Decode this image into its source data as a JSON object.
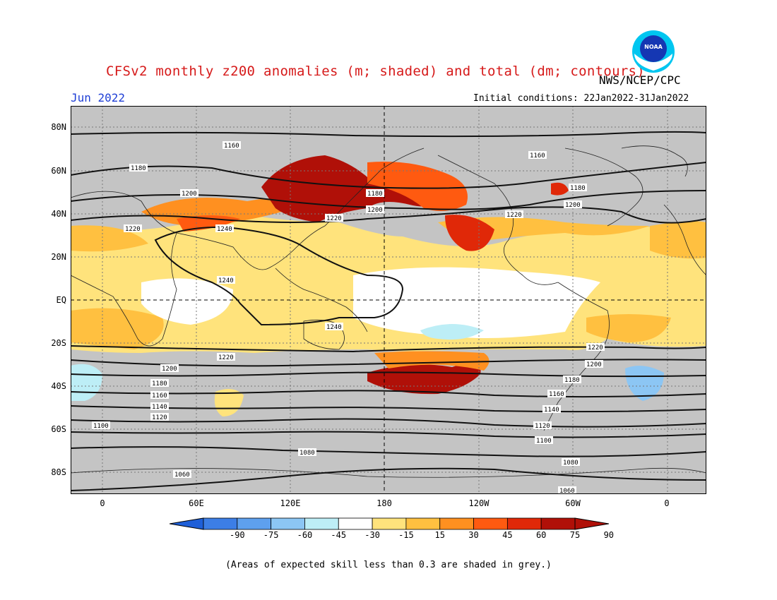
{
  "title": "CFSv2 monthly z200 anomalies (m; shaded) and total (dm; contours)",
  "agency": "NWS/NCEP/CPC",
  "logo_text": "NOAA",
  "month": "Jun 2022",
  "initial_conditions": "Initial conditions: 22Jan2022-31Jan2022",
  "footnote": "(Areas of expected skill less than 0.3 are shaded in grey.)",
  "lat_labels": [
    "80N",
    "60N",
    "40N",
    "20N",
    "EQ",
    "20S",
    "40S",
    "60S",
    "80S"
  ],
  "lon_labels": [
    "0",
    "60E",
    "120E",
    "180",
    "120W",
    "60W",
    "0"
  ],
  "colorbar": {
    "labels": [
      "-90",
      "-75",
      "-60",
      "-45",
      "-30",
      "-15",
      "15",
      "30",
      "45",
      "60",
      "75",
      "90"
    ],
    "colors": [
      "#1e5fd8",
      "#3c7ee6",
      "#5ea0ee",
      "#8cc6f4",
      "#bdeef6",
      "#ffffff",
      "#ffe37c",
      "#ffc040",
      "#ff9020",
      "#ff5a10",
      "#e02808",
      "#b01008",
      "#b01008"
    ]
  },
  "contour_labels": {
    "north": [
      "1160",
      "1180",
      "1200",
      "1220",
      "1240",
      "1180",
      "1200",
      "1220",
      "1160",
      "1180",
      "1200",
      "1220"
    ],
    "equator": [
      "1240",
      "1240"
    ],
    "south": [
      "1220",
      "1200",
      "1180",
      "1160",
      "1140",
      "1120",
      "1100",
      "1080",
      "1060",
      "1220",
      "1200",
      "1180",
      "1160",
      "1140",
      "1120",
      "1100",
      "1080",
      "1060"
    ]
  },
  "colors": {
    "title": "#d61a1a",
    "month": "#1f3fd6",
    "skill_grey": "#c4c4c4"
  }
}
